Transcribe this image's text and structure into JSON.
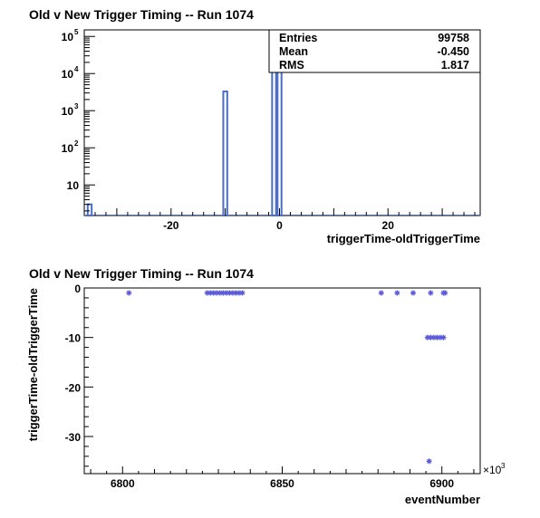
{
  "chart_data": [
    {
      "type": "bar",
      "title": "Old v New Trigger Timing -- Run 1074",
      "xlabel": "triggerTime-oldTriggerTime",
      "ylabel": "",
      "log_y": true,
      "xlim": [
        -36,
        37
      ],
      "ylim": [
        1.5,
        150000
      ],
      "x_ticks": [
        -20,
        0,
        20
      ],
      "y_ticks": [
        {
          "value": 10,
          "base": "10",
          "exp": ""
        },
        {
          "value": 100,
          "base": "10",
          "exp": "2"
        },
        {
          "value": 1000,
          "base": "10",
          "exp": "3"
        },
        {
          "value": 10000,
          "base": "10",
          "exp": "4"
        },
        {
          "value": 100000,
          "base": "10",
          "exp": "5"
        }
      ],
      "bin_width": 0.73,
      "bins": [
        {
          "x": -35,
          "value": 3
        },
        {
          "x": -10,
          "value": 3300
        },
        {
          "x": -1,
          "value": 11000
        },
        {
          "x": 0,
          "value": 65000
        }
      ],
      "stats": {
        "entries_label": "Entries",
        "entries_value": "99758",
        "mean_label": "Mean",
        "mean_value": "-0.450",
        "rms_label": "RMS",
        "rms_value": "1.817"
      },
      "bar_color": "#4a6fc4"
    },
    {
      "type": "scatter",
      "title": "Old v New Trigger Timing -- Run 1074",
      "xlabel": "eventNumber",
      "ylabel": "triggerTime-oldTriggerTime",
      "x_multiplier": "×10",
      "x_multiplier_exp": "3",
      "xlim": [
        6788,
        6912
      ],
      "ylim": [
        -37.5,
        0
      ],
      "x_ticks": [
        6800,
        6850,
        6900
      ],
      "y_ticks": [
        0,
        -10,
        -20,
        -30
      ],
      "marker_color": "#5a5ad8",
      "points": [
        {
          "x": 6802,
          "y": -1
        },
        {
          "x": 6826.5,
          "y": -1
        },
        {
          "x": 6827.5,
          "y": -1
        },
        {
          "x": 6828.5,
          "y": -1
        },
        {
          "x": 6829.5,
          "y": -1
        },
        {
          "x": 6830.5,
          "y": -1
        },
        {
          "x": 6831.5,
          "y": -1
        },
        {
          "x": 6832.5,
          "y": -1
        },
        {
          "x": 6833.5,
          "y": -1
        },
        {
          "x": 6834.5,
          "y": -1
        },
        {
          "x": 6835.5,
          "y": -1
        },
        {
          "x": 6836.5,
          "y": -1
        },
        {
          "x": 6837.5,
          "y": -1
        },
        {
          "x": 6881,
          "y": -1
        },
        {
          "x": 6886,
          "y": -1
        },
        {
          "x": 6891,
          "y": -1
        },
        {
          "x": 6896.5,
          "y": -1
        },
        {
          "x": 6900.5,
          "y": -1
        },
        {
          "x": 6901,
          "y": -1
        },
        {
          "x": 6895.5,
          "y": -10
        },
        {
          "x": 6896.5,
          "y": -10
        },
        {
          "x": 6897.5,
          "y": -10
        },
        {
          "x": 6898.5,
          "y": -10
        },
        {
          "x": 6899.5,
          "y": -10
        },
        {
          "x": 6900.5,
          "y": -10
        },
        {
          "x": 6896,
          "y": -35
        }
      ]
    }
  ]
}
